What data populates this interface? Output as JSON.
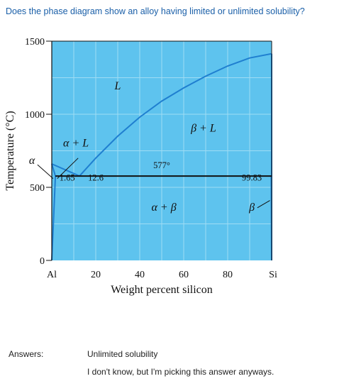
{
  "question": "Does the phase diagram show an alloy having limited or unlimited solubility?",
  "answers": {
    "label": "Answers:",
    "options": [
      "Unlimited solubility",
      "I don't know, but I'm picking this answer anyways."
    ]
  },
  "colors": {
    "fill": "#5ec3ee",
    "grid": "#9fdcf4",
    "curve": "#1f7fd0",
    "axis": "#111111",
    "question_text": "#1a5fa8"
  },
  "chart_data": {
    "type": "phase-diagram",
    "xlabel": "Weight percent silicon",
    "ylabel": "Temperature (°C)",
    "xlim": [
      0,
      100
    ],
    "ylim": [
      0,
      1500
    ],
    "x_end_labels": {
      "left": "Al",
      "right": "Si"
    },
    "xticks": [
      {
        "x": 20,
        "label": "20"
      },
      {
        "x": 40,
        "label": "40"
      },
      {
        "x": 60,
        "label": "60"
      },
      {
        "x": 80,
        "label": "80"
      }
    ],
    "yticks": [
      {
        "y": 0,
        "label": "0"
      },
      {
        "y": 500,
        "label": "500"
      },
      {
        "y": 1000,
        "label": "1000"
      },
      {
        "y": 1500,
        "label": "1500"
      }
    ],
    "grid": true,
    "phase_labels": [
      {
        "text": "L",
        "x": 30,
        "y": 1170
      },
      {
        "text": "α + L",
        "x": 11,
        "y": 780
      },
      {
        "text": "β + L",
        "x": 69,
        "y": 880
      },
      {
        "text": "α + β",
        "x": 51,
        "y": 340
      },
      {
        "text": "α",
        "x": -9,
        "y": 660
      },
      {
        "text": "β",
        "x": 91,
        "y": 340
      }
    ],
    "annotations": [
      {
        "text": "577°",
        "x": 50,
        "y": 630
      },
      {
        "text": "1.65",
        "x": 7,
        "y": 545
      },
      {
        "text": "12.6",
        "x": 20,
        "y": 545
      },
      {
        "text": "99.83",
        "x": 91,
        "y": 545
      }
    ],
    "eutectic_temperature": 577,
    "eutectic_composition": 12.6,
    "alpha_max_solubility": 1.65,
    "beta_max_solubility": 99.83,
    "liquidus": [
      [
        0,
        660
      ],
      [
        12.6,
        577
      ],
      [
        20,
        700
      ],
      [
        30,
        850
      ],
      [
        40,
        980
      ],
      [
        50,
        1090
      ],
      [
        60,
        1180
      ],
      [
        70,
        1260
      ],
      [
        80,
        1330
      ],
      [
        90,
        1385
      ],
      [
        100,
        1414
      ]
    ],
    "alpha_solvus": [
      [
        0,
        0
      ],
      [
        1.65,
        577
      ]
    ],
    "beta_solvus": [
      [
        99.83,
        577
      ],
      [
        100,
        0
      ]
    ]
  }
}
